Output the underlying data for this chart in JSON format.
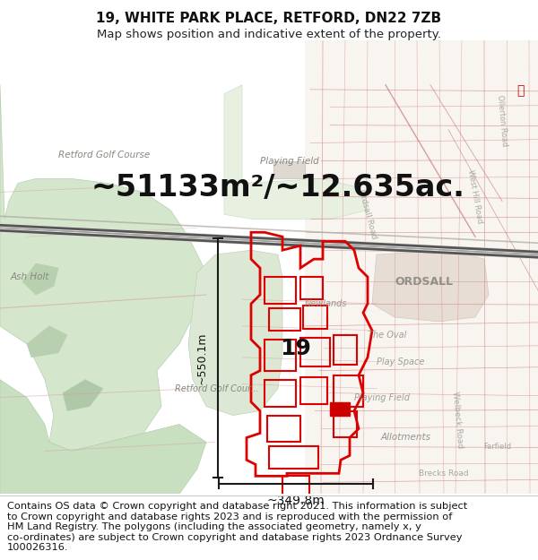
{
  "title_line1": "19, WHITE PARK PLACE, RETFORD, DN22 7ZB",
  "title_line2": "Map shows position and indicative extent of the property.",
  "area_text": "~51133m²/~12.635ac.",
  "label_19": "19",
  "dim_horizontal": "~349.8m",
  "dim_vertical": "~550.1m",
  "copyright_text": "Contains OS data © Crown copyright and database right 2021. This information is subject\nto Crown copyright and database rights 2023 and is reproduced with the permission of\nHM Land Registry. The polygons (including the associated geometry, namely x, y\nco-ordinates) are subject to Crown copyright and database rights 2023 Ordnance Survey\n100026316.",
  "bg_color": "#f7f5f2",
  "map_bg": "#f7f5f2",
  "title_bg": "#ffffff",
  "footer_bg": "#ffffff",
  "area_fontsize": 24,
  "title_fontsize": 11,
  "subtitle_fontsize": 9.5,
  "label_fontsize": 18,
  "dim_fontsize": 9,
  "copyright_fontsize": 8.2,
  "golf_green": "#d4e6cc",
  "golf_green2": "#c8dfc0",
  "golf_dark": "#b8cfb0",
  "field_green": "#dde8d4",
  "urban_bg": "#f0ece6",
  "road_pink": "#e8c0b8",
  "property_color": "#dd0000",
  "dim_color": "#1a1a1a",
  "map_road_gray": "#c8c4be",
  "railway_color": "#555555",
  "text_gray": "#888880",
  "label_color": "#444440"
}
